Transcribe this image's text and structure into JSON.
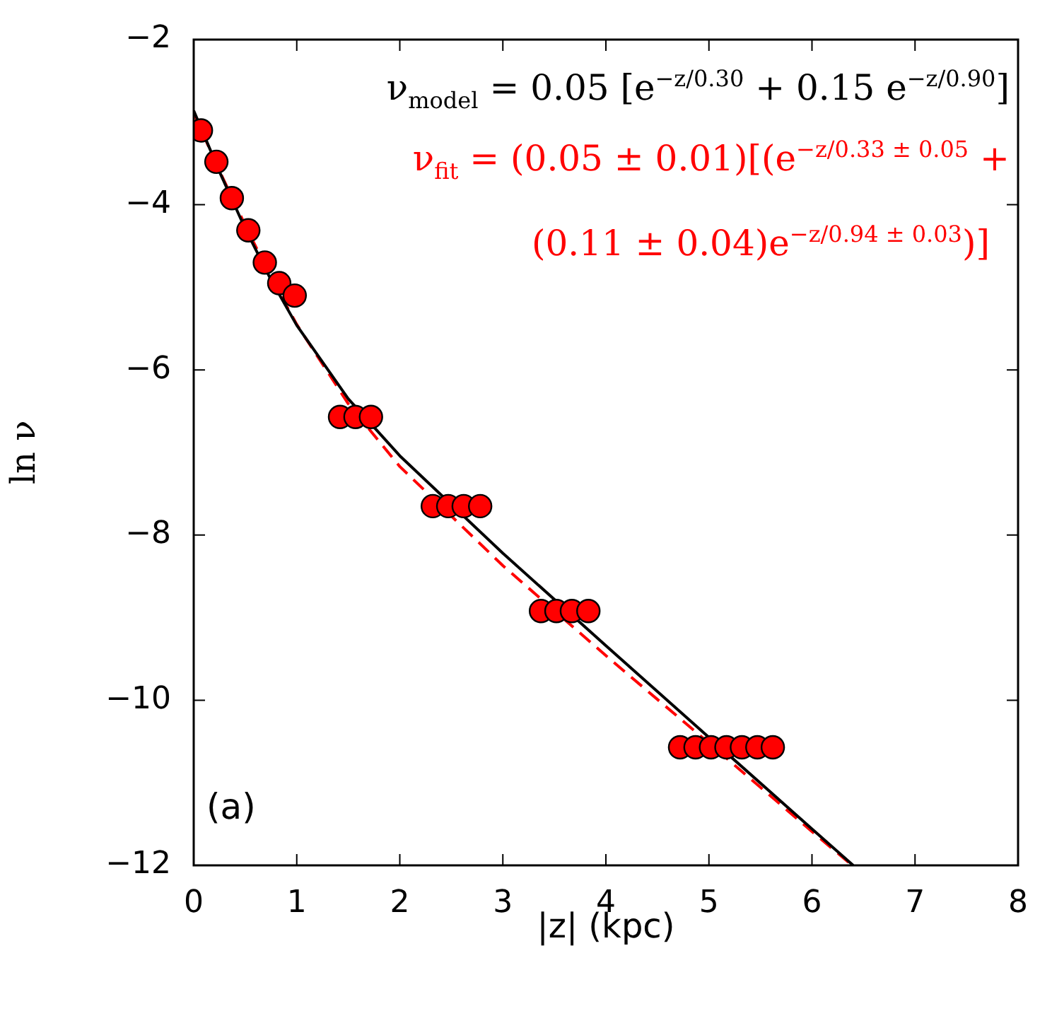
{
  "chart_data": {
    "type": "scatter",
    "xlabel": "|z| (kpc)",
    "ylabel": "ln ν",
    "xlim": [
      0,
      8
    ],
    "ylim": [
      -12,
      -2
    ],
    "xticks": [
      0,
      1,
      2,
      3,
      4,
      5,
      6,
      7,
      8
    ],
    "yticks": [
      {
        "value": -12,
        "label": "−12"
      },
      {
        "value": -10,
        "label": "−10"
      },
      {
        "value": -8,
        "label": "−8"
      },
      {
        "value": -6,
        "label": "−6"
      },
      {
        "value": -4,
        "label": "−4"
      },
      {
        "value": -2,
        "label": "−2"
      }
    ],
    "grid": false,
    "legend": false,
    "marker": "circle",
    "series": [
      {
        "color": "#ff0000",
        "x": [
          0.07,
          0.22,
          0.37,
          0.53,
          0.69,
          0.83,
          0.98,
          1.42,
          1.57,
          1.72,
          2.32,
          2.47,
          2.62,
          2.78,
          3.37,
          3.52,
          3.67,
          3.83,
          4.72,
          4.87,
          5.02,
          5.17,
          5.32,
          5.47,
          5.62
        ],
        "values": [
          -3.1,
          -3.48,
          -3.92,
          -4.31,
          -4.7,
          -4.95,
          -5.1,
          -6.57,
          -6.57,
          -6.57,
          -7.65,
          -7.65,
          -7.65,
          -7.65,
          -8.92,
          -8.92,
          -8.92,
          -8.92,
          -10.57,
          -10.57,
          -10.57,
          -10.57,
          -10.57,
          -10.57,
          -10.57
        ]
      },
      {
        "type": "line",
        "color": "#000000",
        "line_style": "solid",
        "marker": "none",
        "x": [
          0,
          0.25,
          0.5,
          0.75,
          1,
          1.5,
          2,
          3,
          4,
          5,
          6,
          6.4
        ],
        "values": [
          -2.86,
          -3.6,
          -4.29,
          -4.91,
          -5.46,
          -6.35,
          -7.04,
          -8.22,
          -9.34,
          -10.45,
          -11.56,
          -12
        ]
      },
      {
        "type": "line",
        "color": "#ff0000",
        "line_style": "dashed",
        "marker": "none",
        "x": [
          0,
          0.25,
          0.5,
          0.75,
          1,
          1.5,
          2,
          3,
          4,
          5,
          6,
          6.39
        ],
        "values": [
          -2.89,
          -3.59,
          -4.25,
          -4.88,
          -5.45,
          -6.41,
          -7.17,
          -8.37,
          -9.46,
          -10.52,
          -11.59,
          -12
        ]
      }
    ],
    "annotations": [
      "ν$_{model}$ = 0.05 [e$^{−z/0.30}$ + 0.15 e$^{−z/0.90}$]",
      "ν$_{fit}$ = (0.05 ± 0.01)[(e$^{−z/0.33 ± 0.05}$ +",
      "(0.11 ± 0.04)e$^{−z/0.94 ± 0.03}$)]",
      "(a)"
    ]
  }
}
